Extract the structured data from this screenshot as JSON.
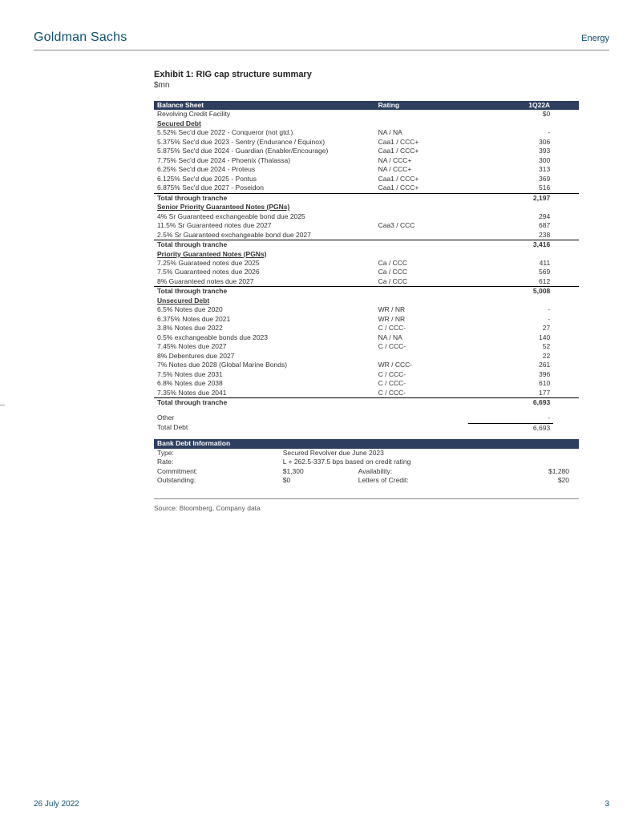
{
  "header": {
    "brand": "Goldman Sachs",
    "sector": "Energy"
  },
  "exhibit": {
    "title": "Exhibit 1: RIG cap structure summary",
    "subtitle": "$mn"
  },
  "table": {
    "headers": {
      "c1": "Balance Sheet",
      "c2": "Rating",
      "c3": "1Q22A"
    },
    "rcf": {
      "desc": "Revolving Credit Facility",
      "rating": "",
      "amt": "$0"
    },
    "secured": {
      "title": "Secured Debt",
      "rows": [
        {
          "desc": "5.52% Sec'd due 2022 - Conqueror (not gtd.)",
          "rating": "NA / NA",
          "amt": "-"
        },
        {
          "desc": "5.375% Sec'd due 2023 - Sentry (Endurance / Equinox)",
          "rating": "Caa1 / CCC+",
          "amt": "306"
        },
        {
          "desc": "5.875% Sec'd due 2024 - Guardian (Enabler/Encourage)",
          "rating": "Caa1 / CCC+",
          "amt": "393"
        },
        {
          "desc": "7.75% Sec'd due 2024 - Phoenix (Thalassa)",
          "rating": "NA / CCC+",
          "amt": "300"
        },
        {
          "desc": "6.25% Sec'd due 2024 - Proteus",
          "rating": "NA / CCC+",
          "amt": "313"
        },
        {
          "desc": "6.125% Sec'd due 2025 - Pontus",
          "rating": "Caa1 / CCC+",
          "amt": "369"
        },
        {
          "desc": "6.875% Sec'd due 2027 - Poseidon",
          "rating": "Caa1 / CCC+",
          "amt": "516"
        }
      ],
      "total": {
        "desc": "Total through tranche",
        "amt": "2,197"
      }
    },
    "spgn": {
      "title": "Senior Priority Guaranteed Notes (PGNs)",
      "rows": [
        {
          "desc": "4% Sr Guaranteed exchangeable bond due 2025",
          "rating": "",
          "amt": "294"
        },
        {
          "desc": "11.5% Sr Guaranteed notes due 2027",
          "rating": "Caa3 / CCC",
          "amt": "687"
        },
        {
          "desc": "2.5% Sr Guaranteed exchangeable bond due 2027",
          "rating": "",
          "amt": "238"
        }
      ],
      "total": {
        "desc": "Total through tranche",
        "amt": "3,416"
      }
    },
    "pgn": {
      "title": "Priority Guaranteed Notes (PGNs)",
      "rows": [
        {
          "desc": "7.25% Guarateed notes due 2025",
          "rating": "Ca / CCC",
          "amt": "411"
        },
        {
          "desc": "7.5% Guaranteed notes due 2026",
          "rating": "Ca / CCC",
          "amt": "569"
        },
        {
          "desc": "8% Guaranteed notes due 2027",
          "rating": "Ca / CCC",
          "amt": "612"
        }
      ],
      "total": {
        "desc": "Total through tranche",
        "amt": "5,008"
      }
    },
    "unsec": {
      "title": "Unsecured Debt",
      "rows": [
        {
          "desc": "6.5% Notes due 2020",
          "rating": "WR / NR",
          "amt": "-"
        },
        {
          "desc": "6.375% Notes due 2021",
          "rating": "WR / NR",
          "amt": "-"
        },
        {
          "desc": "3.8% Notes due 2022",
          "rating": "C / CCC-",
          "amt": "27"
        },
        {
          "desc": "0.5% exchangeable bonds due 2023",
          "rating": "NA / NA",
          "amt": "140"
        },
        {
          "desc": "7.45% Notes due 2027",
          "rating": "C / CCC-",
          "amt": "52"
        },
        {
          "desc": "8% Debentures due 2027",
          "rating": "",
          "amt": "22"
        },
        {
          "desc": "7% Notes due 2028 (Global Marine Bonds)",
          "rating": "WR / CCC-",
          "amt": "261"
        },
        {
          "desc": "7.5% Notes due 2031",
          "rating": "C / CCC-",
          "amt": "396"
        },
        {
          "desc": "6.8% Notes due 2038",
          "rating": "C / CCC-",
          "amt": "610"
        },
        {
          "desc": "7.35% Notes due 2041",
          "rating": "C / CCC-",
          "amt": "177"
        }
      ],
      "total": {
        "desc": "Total through tranche",
        "amt": "6,693"
      }
    },
    "other": {
      "desc": "Other",
      "amt": "-"
    },
    "totaldebt": {
      "desc": "Total Debt",
      "amt": "6,693"
    }
  },
  "bank": {
    "header": "Bank Debt Information",
    "rows": {
      "type_l": "Type:",
      "type_v": "Secured Revolver due June 2023",
      "rate_l": "Rate:",
      "rate_v": "L + 262.5-337.5 bps based on credit rating",
      "commit_l": "Commitment:",
      "commit_v": "$1,300",
      "avail_l": "Availability:",
      "avail_v": "$1,280",
      "out_l": "Outstanding:",
      "out_v": "$0",
      "loc_l": "Letters of Credit:",
      "loc_v": "$20"
    }
  },
  "source": "Source: Bloomberg, Company data",
  "footer": {
    "date": "26 July 2022",
    "page": "3"
  },
  "colors": {
    "brand": "#0d4f6c",
    "hdr_bg": "#2d3e5e"
  }
}
